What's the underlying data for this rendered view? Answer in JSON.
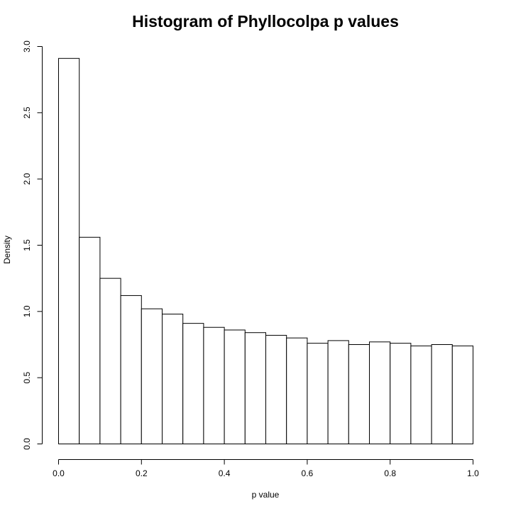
{
  "chart_data": {
    "type": "bar",
    "title": "Histogram of Phyllocolpa p values",
    "xlabel": "p value",
    "ylabel": "Density",
    "xlim": [
      0,
      1
    ],
    "ylim": [
      0,
      3
    ],
    "bin_width": 0.05,
    "bin_starts": [
      0.0,
      0.05,
      0.1,
      0.15,
      0.2,
      0.25,
      0.3,
      0.35,
      0.4,
      0.45,
      0.5,
      0.55,
      0.6,
      0.65,
      0.7,
      0.75,
      0.8,
      0.85,
      0.9,
      0.95
    ],
    "values": [
      2.91,
      1.56,
      1.25,
      1.12,
      1.02,
      0.98,
      0.91,
      0.88,
      0.86,
      0.84,
      0.82,
      0.8,
      0.76,
      0.78,
      0.75,
      0.77,
      0.76,
      0.74,
      0.75,
      0.74
    ],
    "x_ticks": [
      "0.0",
      "0.2",
      "0.4",
      "0.6",
      "0.8",
      "1.0"
    ],
    "y_ticks": [
      "0.0",
      "0.5",
      "1.0",
      "1.5",
      "2.0",
      "2.5",
      "3.0"
    ],
    "grid": false,
    "legend": "none"
  }
}
